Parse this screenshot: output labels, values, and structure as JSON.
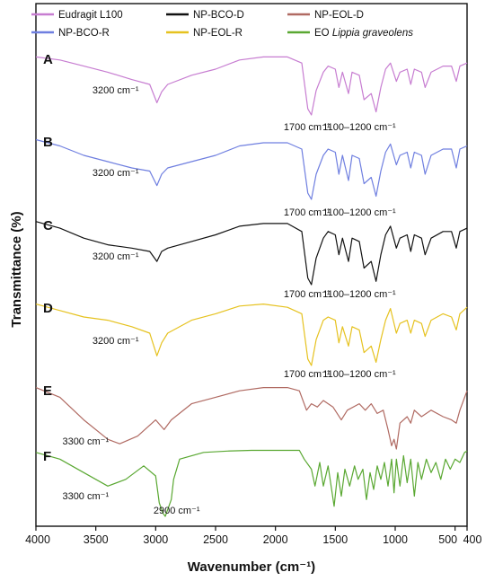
{
  "chart_data": {
    "type": "line",
    "xlabel": "Wavenumber (cm⁻¹)",
    "ylabel": "Transmittance (%)",
    "xlim": [
      4000,
      400
    ],
    "x_reversed": true,
    "x_ticks": [
      {
        "value": 4000,
        "label": "4000"
      },
      {
        "value": 3500,
        "label": "3500"
      },
      {
        "value": 3000,
        "label": "3000"
      },
      {
        "value": 2500,
        "label": "2500"
      },
      {
        "value": 2000,
        "label": "2000"
      },
      {
        "value": 1500,
        "label": "1500"
      },
      {
        "value": 1000,
        "label": "1000"
      },
      {
        "value": 500,
        "label": "500"
      },
      {
        "value": 400,
        "label": "400"
      }
    ],
    "legend": [
      {
        "label": "Eudragit L100",
        "color": "#c77dd1"
      },
      {
        "label": "NP-BCO-R",
        "color": "#6f7fe0"
      },
      {
        "label": "NP-BCO-D",
        "color": "#111111"
      },
      {
        "label": "NP-EOL-R",
        "color": "#e6c21f"
      },
      {
        "label": "NP-EOL-D",
        "color": "#b06a62"
      },
      {
        "label": "EO ",
        "label_italic": "Lippia graveolens",
        "color": "#5aa832"
      }
    ],
    "series": [
      {
        "panel": "A",
        "color": "#c77dd1",
        "annotations": [
          {
            "text": "3200 cm⁻¹",
            "x": 3200
          },
          {
            "text": "1700 cm⁻¹",
            "x": 1700
          },
          {
            "text": "1100–1200 cm⁻¹",
            "x": 1150
          }
        ],
        "points": [
          [
            4000,
            0.05
          ],
          [
            3800,
            0.1
          ],
          [
            3600,
            0.2
          ],
          [
            3400,
            0.3
          ],
          [
            3200,
            0.42
          ],
          [
            3050,
            0.5
          ],
          [
            2990,
            0.8
          ],
          [
            2950,
            0.62
          ],
          [
            2900,
            0.5
          ],
          [
            2700,
            0.35
          ],
          [
            2500,
            0.25
          ],
          [
            2300,
            0.1
          ],
          [
            2100,
            0.05
          ],
          [
            1900,
            0.05
          ],
          [
            1780,
            0.15
          ],
          [
            1730,
            0.9
          ],
          [
            1700,
            1.0
          ],
          [
            1660,
            0.6
          ],
          [
            1600,
            0.3
          ],
          [
            1560,
            0.2
          ],
          [
            1500,
            0.25
          ],
          [
            1470,
            0.55
          ],
          [
            1440,
            0.3
          ],
          [
            1390,
            0.65
          ],
          [
            1360,
            0.3
          ],
          [
            1300,
            0.35
          ],
          [
            1260,
            0.75
          ],
          [
            1200,
            0.65
          ],
          [
            1160,
            0.95
          ],
          [
            1120,
            0.55
          ],
          [
            1080,
            0.25
          ],
          [
            1040,
            0.15
          ],
          [
            990,
            0.45
          ],
          [
            960,
            0.3
          ],
          [
            900,
            0.25
          ],
          [
            870,
            0.5
          ],
          [
            840,
            0.25
          ],
          [
            780,
            0.3
          ],
          [
            750,
            0.55
          ],
          [
            700,
            0.3
          ],
          [
            600,
            0.2
          ],
          [
            530,
            0.2
          ],
          [
            490,
            0.45
          ],
          [
            460,
            0.2
          ],
          [
            400,
            0.15
          ]
        ]
      },
      {
        "panel": "B",
        "color": "#6f7fe0",
        "annotations": [
          {
            "text": "3200 cm⁻¹",
            "x": 3200
          },
          {
            "text": "1700 cm⁻¹",
            "x": 1700
          },
          {
            "text": "1100–1200 cm⁻¹",
            "x": 1150
          }
        ],
        "points": [
          [
            4000,
            0.05
          ],
          [
            3800,
            0.15
          ],
          [
            3600,
            0.3
          ],
          [
            3400,
            0.4
          ],
          [
            3200,
            0.5
          ],
          [
            3050,
            0.55
          ],
          [
            2990,
            0.78
          ],
          [
            2950,
            0.6
          ],
          [
            2900,
            0.5
          ],
          [
            2700,
            0.4
          ],
          [
            2500,
            0.3
          ],
          [
            2300,
            0.15
          ],
          [
            2100,
            0.1
          ],
          [
            1900,
            0.1
          ],
          [
            1780,
            0.2
          ],
          [
            1730,
            0.9
          ],
          [
            1700,
            1.0
          ],
          [
            1660,
            0.6
          ],
          [
            1600,
            0.3
          ],
          [
            1560,
            0.2
          ],
          [
            1500,
            0.25
          ],
          [
            1470,
            0.6
          ],
          [
            1440,
            0.3
          ],
          [
            1390,
            0.7
          ],
          [
            1360,
            0.3
          ],
          [
            1300,
            0.35
          ],
          [
            1260,
            0.75
          ],
          [
            1200,
            0.65
          ],
          [
            1160,
            0.95
          ],
          [
            1120,
            0.55
          ],
          [
            1080,
            0.25
          ],
          [
            1040,
            0.12
          ],
          [
            990,
            0.45
          ],
          [
            960,
            0.3
          ],
          [
            900,
            0.25
          ],
          [
            870,
            0.5
          ],
          [
            840,
            0.25
          ],
          [
            780,
            0.3
          ],
          [
            750,
            0.6
          ],
          [
            700,
            0.3
          ],
          [
            600,
            0.2
          ],
          [
            530,
            0.2
          ],
          [
            490,
            0.5
          ],
          [
            460,
            0.2
          ],
          [
            400,
            0.15
          ]
        ]
      },
      {
        "panel": "C",
        "color": "#111111",
        "annotations": [
          {
            "text": "3200 cm⁻¹",
            "x": 3200
          },
          {
            "text": "1700 cm⁻¹",
            "x": 1700
          },
          {
            "text": "1100–1200 cm⁻¹",
            "x": 1150
          }
        ],
        "points": [
          [
            4000,
            0.05
          ],
          [
            3800,
            0.15
          ],
          [
            3600,
            0.3
          ],
          [
            3400,
            0.4
          ],
          [
            3200,
            0.45
          ],
          [
            3050,
            0.5
          ],
          [
            2990,
            0.65
          ],
          [
            2950,
            0.5
          ],
          [
            2900,
            0.45
          ],
          [
            2700,
            0.35
          ],
          [
            2500,
            0.25
          ],
          [
            2300,
            0.12
          ],
          [
            2100,
            0.08
          ],
          [
            1900,
            0.08
          ],
          [
            1780,
            0.2
          ],
          [
            1730,
            0.9
          ],
          [
            1700,
            1.0
          ],
          [
            1660,
            0.6
          ],
          [
            1600,
            0.3
          ],
          [
            1560,
            0.2
          ],
          [
            1500,
            0.25
          ],
          [
            1470,
            0.55
          ],
          [
            1440,
            0.3
          ],
          [
            1390,
            0.65
          ],
          [
            1360,
            0.3
          ],
          [
            1300,
            0.35
          ],
          [
            1260,
            0.75
          ],
          [
            1200,
            0.65
          ],
          [
            1160,
            0.95
          ],
          [
            1120,
            0.55
          ],
          [
            1080,
            0.25
          ],
          [
            1040,
            0.12
          ],
          [
            990,
            0.45
          ],
          [
            960,
            0.3
          ],
          [
            900,
            0.25
          ],
          [
            870,
            0.5
          ],
          [
            840,
            0.25
          ],
          [
            780,
            0.3
          ],
          [
            750,
            0.55
          ],
          [
            700,
            0.3
          ],
          [
            600,
            0.2
          ],
          [
            530,
            0.2
          ],
          [
            490,
            0.45
          ],
          [
            460,
            0.2
          ],
          [
            400,
            0.15
          ]
        ]
      },
      {
        "panel": "D",
        "color": "#e6c21f",
        "annotations": [
          {
            "text": "3200 cm⁻¹",
            "x": 3200
          },
          {
            "text": "1700 cm⁻¹",
            "x": 1700
          },
          {
            "text": "1100–1200 cm⁻¹",
            "x": 1150
          }
        ],
        "points": [
          [
            4000,
            0.05
          ],
          [
            3800,
            0.15
          ],
          [
            3600,
            0.25
          ],
          [
            3400,
            0.3
          ],
          [
            3200,
            0.4
          ],
          [
            3050,
            0.5
          ],
          [
            2990,
            0.85
          ],
          [
            2950,
            0.65
          ],
          [
            2900,
            0.5
          ],
          [
            2700,
            0.3
          ],
          [
            2500,
            0.2
          ],
          [
            2300,
            0.08
          ],
          [
            2100,
            0.05
          ],
          [
            1900,
            0.1
          ],
          [
            1780,
            0.2
          ],
          [
            1730,
            0.9
          ],
          [
            1700,
            1.0
          ],
          [
            1660,
            0.6
          ],
          [
            1600,
            0.3
          ],
          [
            1560,
            0.25
          ],
          [
            1500,
            0.3
          ],
          [
            1470,
            0.65
          ],
          [
            1440,
            0.4
          ],
          [
            1390,
            0.7
          ],
          [
            1360,
            0.4
          ],
          [
            1300,
            0.45
          ],
          [
            1260,
            0.8
          ],
          [
            1200,
            0.7
          ],
          [
            1160,
            0.95
          ],
          [
            1120,
            0.6
          ],
          [
            1080,
            0.3
          ],
          [
            1040,
            0.12
          ],
          [
            990,
            0.5
          ],
          [
            960,
            0.35
          ],
          [
            900,
            0.3
          ],
          [
            870,
            0.5
          ],
          [
            840,
            0.3
          ],
          [
            780,
            0.35
          ],
          [
            750,
            0.55
          ],
          [
            700,
            0.3
          ],
          [
            600,
            0.2
          ],
          [
            530,
            0.25
          ],
          [
            490,
            0.45
          ],
          [
            460,
            0.2
          ],
          [
            400,
            0.1
          ]
        ]
      },
      {
        "panel": "E",
        "color": "#b06a62",
        "annotations": [
          {
            "text": "3300 cm⁻¹",
            "x": 3300
          }
        ],
        "points": [
          [
            4000,
            0.05
          ],
          [
            3800,
            0.2
          ],
          [
            3600,
            0.55
          ],
          [
            3400,
            0.85
          ],
          [
            3300,
            0.92
          ],
          [
            3150,
            0.8
          ],
          [
            3000,
            0.55
          ],
          [
            2930,
            0.7
          ],
          [
            2870,
            0.55
          ],
          [
            2700,
            0.3
          ],
          [
            2500,
            0.2
          ],
          [
            2300,
            0.1
          ],
          [
            2100,
            0.05
          ],
          [
            1900,
            0.05
          ],
          [
            1800,
            0.1
          ],
          [
            1740,
            0.4
          ],
          [
            1700,
            0.3
          ],
          [
            1650,
            0.35
          ],
          [
            1600,
            0.25
          ],
          [
            1520,
            0.35
          ],
          [
            1450,
            0.55
          ],
          [
            1400,
            0.4
          ],
          [
            1300,
            0.3
          ],
          [
            1250,
            0.4
          ],
          [
            1200,
            0.3
          ],
          [
            1150,
            0.45
          ],
          [
            1100,
            0.4
          ],
          [
            1060,
            0.7
          ],
          [
            1030,
            0.95
          ],
          [
            1010,
            0.85
          ],
          [
            990,
            1.0
          ],
          [
            960,
            0.6
          ],
          [
            900,
            0.5
          ],
          [
            870,
            0.6
          ],
          [
            840,
            0.4
          ],
          [
            780,
            0.5
          ],
          [
            700,
            0.4
          ],
          [
            600,
            0.5
          ],
          [
            530,
            0.55
          ],
          [
            490,
            0.6
          ],
          [
            460,
            0.4
          ],
          [
            400,
            0.1
          ]
        ]
      },
      {
        "panel": "F",
        "color": "#5aa832",
        "annotations": [
          {
            "text": "3300 cm⁻¹",
            "x": 3300
          },
          {
            "text": "2900 cm⁻¹",
            "x": 2900
          }
        ],
        "points": [
          [
            4000,
            0.05
          ],
          [
            3800,
            0.15
          ],
          [
            3600,
            0.35
          ],
          [
            3400,
            0.55
          ],
          [
            3250,
            0.45
          ],
          [
            3100,
            0.25
          ],
          [
            3000,
            0.4
          ],
          [
            2970,
            0.8
          ],
          [
            2940,
            0.95
          ],
          [
            2920,
            1.0
          ],
          [
            2870,
            0.75
          ],
          [
            2850,
            0.45
          ],
          [
            2800,
            0.15
          ],
          [
            2600,
            0.05
          ],
          [
            2400,
            0.03
          ],
          [
            2200,
            0.02
          ],
          [
            2000,
            0.02
          ],
          [
            1800,
            0.02
          ],
          [
            1760,
            0.15
          ],
          [
            1700,
            0.3
          ],
          [
            1670,
            0.55
          ],
          [
            1630,
            0.2
          ],
          [
            1600,
            0.55
          ],
          [
            1560,
            0.25
          ],
          [
            1510,
            0.85
          ],
          [
            1480,
            0.35
          ],
          [
            1450,
            0.7
          ],
          [
            1420,
            0.3
          ],
          [
            1380,
            0.55
          ],
          [
            1340,
            0.25
          ],
          [
            1310,
            0.45
          ],
          [
            1270,
            0.3
          ],
          [
            1240,
            0.75
          ],
          [
            1210,
            0.35
          ],
          [
            1180,
            0.6
          ],
          [
            1150,
            0.25
          ],
          [
            1120,
            0.45
          ],
          [
            1090,
            0.2
          ],
          [
            1060,
            0.55
          ],
          [
            1030,
            0.15
          ],
          [
            1010,
            0.65
          ],
          [
            990,
            0.15
          ],
          [
            960,
            0.55
          ],
          [
            930,
            0.1
          ],
          [
            900,
            0.5
          ],
          [
            870,
            0.15
          ],
          [
            840,
            0.7
          ],
          [
            810,
            0.2
          ],
          [
            780,
            0.45
          ],
          [
            740,
            0.15
          ],
          [
            700,
            0.35
          ],
          [
            660,
            0.2
          ],
          [
            620,
            0.45
          ],
          [
            580,
            0.15
          ],
          [
            540,
            0.3
          ],
          [
            500,
            0.15
          ],
          [
            460,
            0.2
          ],
          [
            420,
            0.05
          ],
          [
            400,
            0.03
          ]
        ]
      }
    ]
  }
}
